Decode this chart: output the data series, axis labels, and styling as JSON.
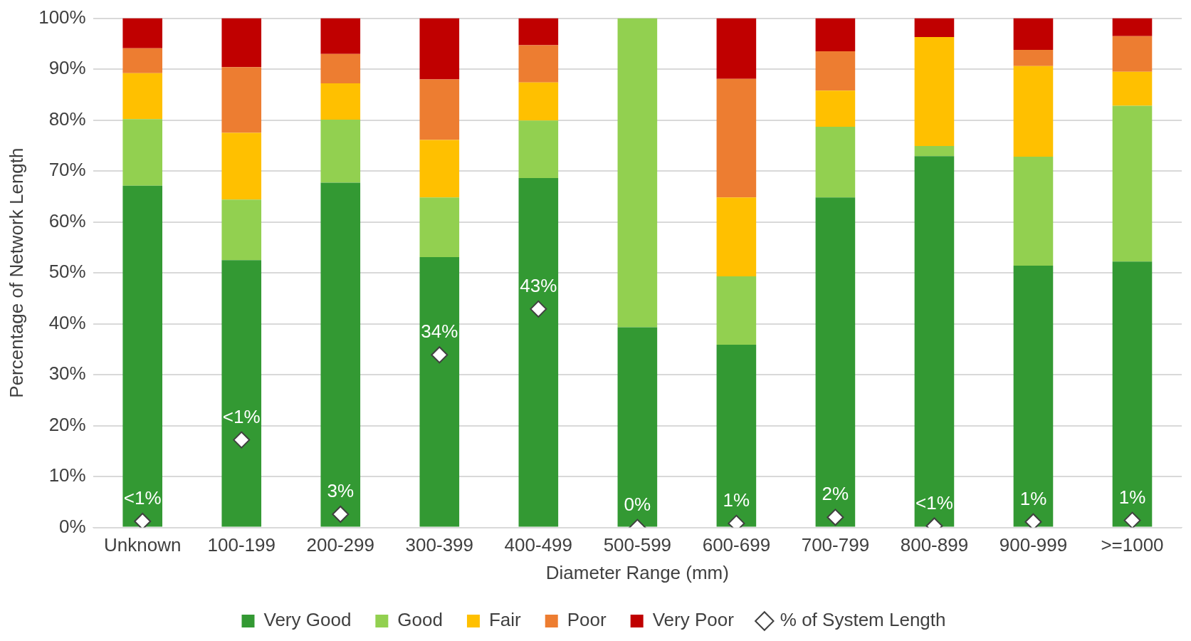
{
  "chart_data": {
    "type": "bar",
    "stacked": true,
    "xlabel": "Diameter Range (mm)",
    "ylabel": "Percentage of Network Length",
    "categories": [
      "Unknown",
      "100-199",
      "200-299",
      "300-399",
      "400-499",
      "500-599",
      "600-699",
      "700-799",
      "800-899",
      "900-999",
      ">=1000"
    ],
    "series": [
      {
        "name": "Very Good",
        "color": "#339933",
        "values": [
          67.1,
          52.5,
          67.7,
          53.1,
          68.6,
          39.3,
          35.9,
          64.8,
          72.9,
          51.4,
          52.2
        ]
      },
      {
        "name": "Good",
        "color": "#92d050",
        "values": [
          13.1,
          11.9,
          12.4,
          11.7,
          11.3,
          60.7,
          13.4,
          13.9,
          2,
          21.4,
          30.6
        ]
      },
      {
        "name": "Fair",
        "color": "#ffc000",
        "values": [
          9,
          13.1,
          7.1,
          11.3,
          7.5,
          0,
          15.5,
          7.1,
          21.4,
          17.8,
          6.7
        ]
      },
      {
        "name": "Poor",
        "color": "#ed7d31",
        "values": [
          4.9,
          12.9,
          5.8,
          11.9,
          7.3,
          0,
          23.3,
          7.7,
          0,
          3.2,
          7
        ]
      },
      {
        "name": "Very Poor",
        "color": "#c00000",
        "values": [
          5.9,
          9.6,
          7,
          12,
          5.3,
          0,
          11.9,
          6.5,
          3.7,
          6.2,
          3.5
        ]
      },
      {
        "name": "% of System Length",
        "type": "scatter",
        "marker": "diamond",
        "color": "#ffffff",
        "x": [
          "Unknown",
          "100-199",
          "200-299",
          "300-399",
          "400-499",
          "500-599",
          "600-699",
          "700-799",
          "800-899",
          "900-999",
          ">=1000"
        ],
        "values": [
          1.2,
          17.2,
          2.6,
          33.9,
          42.9,
          0,
          0.8,
          2,
          0.3,
          1.1,
          1.4
        ],
        "value_labels": [
          "<1%",
          "<1%",
          "3%",
          "34%",
          "43%",
          "0%",
          "1%",
          "2%",
          "<1%",
          "1%",
          "1%"
        ]
      }
    ],
    "ylim": [
      0,
      100
    ],
    "yticks": [
      {
        "value": 0,
        "label": "0%"
      },
      {
        "value": 10,
        "label": "10%"
      },
      {
        "value": 20,
        "label": "20%"
      },
      {
        "value": 30,
        "label": "30%"
      },
      {
        "value": 40,
        "label": "40%"
      },
      {
        "value": 50,
        "label": "50%"
      },
      {
        "value": 60,
        "label": "60%"
      },
      {
        "value": 70,
        "label": "70%"
      },
      {
        "value": 80,
        "label": "80%"
      },
      {
        "value": 90,
        "label": "90%"
      },
      {
        "value": 100,
        "label": "100%"
      }
    ],
    "grid": "y",
    "legend": "bottom"
  }
}
